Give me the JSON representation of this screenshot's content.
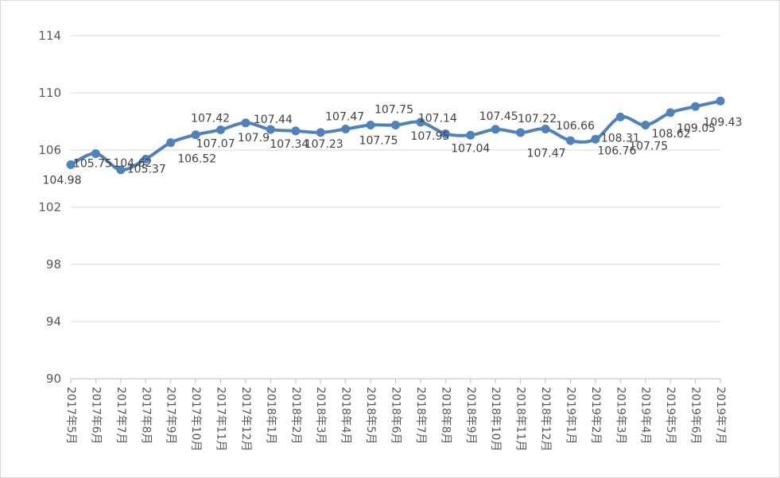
{
  "chart_data": {
    "type": "line",
    "categories": [
      "2017年5月",
      "2017年6月",
      "2017年7月",
      "2017年8月",
      "2017年9月",
      "2017年10月",
      "2017年11月",
      "2017年12月",
      "2018年1月",
      "2018年2月",
      "2018年3月",
      "2018年4月",
      "2018年5月",
      "2018年6月",
      "2018年7月",
      "2018年8月",
      "2018年9月",
      "2018年10月",
      "2018年11月",
      "2018年12月",
      "2019年1月",
      "2019年2月",
      "2019年3月",
      "2019年4月",
      "2019年5月",
      "2019年6月",
      "2019年7月"
    ],
    "series": [
      {
        "values": [
          104.98,
          105.75,
          104.62,
          105.37,
          106.52,
          107.07,
          107.42,
          107.9,
          107.44,
          107.34,
          107.23,
          107.47,
          107.75,
          107.75,
          107.95,
          107.14,
          107.04,
          107.45,
          107.22,
          107.47,
          106.66,
          106.76,
          108.31,
          107.75,
          108.62,
          109.05,
          109.43
        ]
      }
    ],
    "ylim": [
      90,
      114
    ],
    "yticks": [
      90,
      94,
      98,
      102,
      106,
      110,
      114
    ],
    "grid": true,
    "legend": "none",
    "smoothed": true,
    "colors": {
      "line": "#4f81bd",
      "grid": "#d9d9d9",
      "axis": "#bfbfbf",
      "tick_text": "#595959",
      "label_text": "#404040",
      "border": "#d9d9d9"
    }
  }
}
